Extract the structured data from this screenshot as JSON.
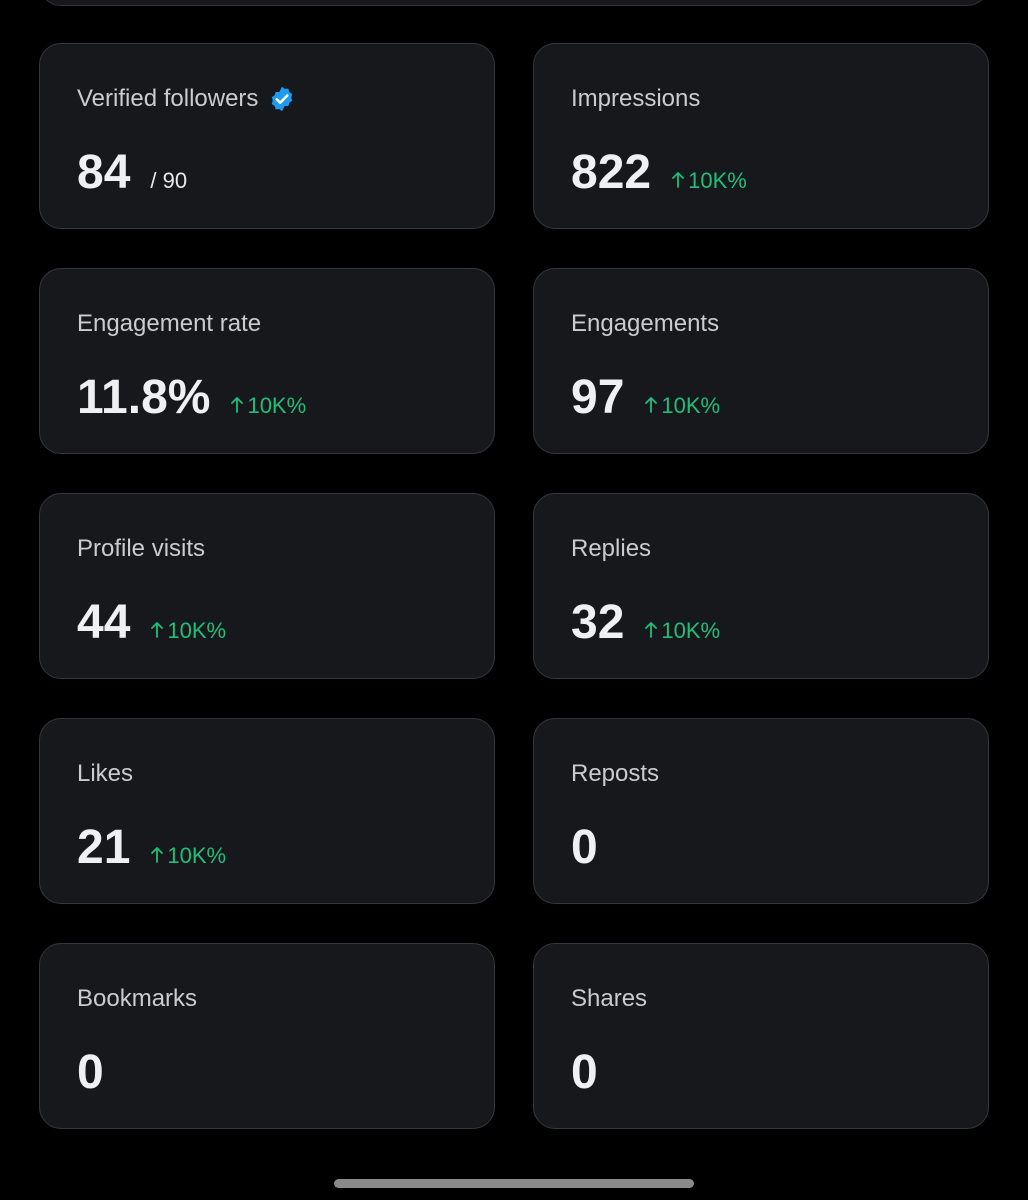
{
  "cards": [
    {
      "label": "Verified followers",
      "value": "84",
      "total": "/ 90"
    },
    {
      "label": "Impressions",
      "value": "822",
      "change": "10K%"
    },
    {
      "label": "Engagement rate",
      "value": "11.8%",
      "change": "10K%"
    },
    {
      "label": "Engagements",
      "value": "97",
      "change": "10K%"
    },
    {
      "label": "Profile visits",
      "value": "44",
      "change": "10K%"
    },
    {
      "label": "Replies",
      "value": "32",
      "change": "10K%"
    },
    {
      "label": "Likes",
      "value": "21",
      "change": "10K%"
    },
    {
      "label": "Reposts",
      "value": "0"
    },
    {
      "label": "Bookmarks",
      "value": "0"
    },
    {
      "label": "Shares",
      "value": "0"
    }
  ]
}
